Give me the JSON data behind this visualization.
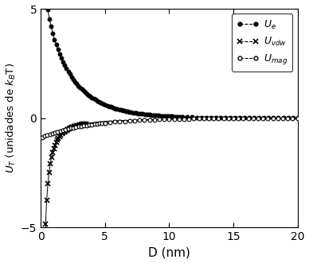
{
  "xlabel": "D (nm)",
  "ylabel_parts": [
    "$U_T$",
    " (unidades de $k_B$T)"
  ],
  "xlim": [
    0,
    20
  ],
  "ylim": [
    -5,
    5
  ],
  "xticks": [
    0,
    5,
    10,
    15,
    20
  ],
  "yticks": [
    -5,
    0,
    5
  ],
  "background_color": "#ffffff",
  "legend_labels": [
    "$U_e$",
    "$U_{vdw}$",
    "$U_{mag}$"
  ],
  "figsize": [
    3.88,
    3.31
  ],
  "dpi": 100,
  "Ue_A": 28.0,
  "Ue_k": 0.42,
  "Uvdw_A": -0.55,
  "Uvdw_n": 1.8,
  "Umag_A": -0.9,
  "Umag_k": 0.28
}
